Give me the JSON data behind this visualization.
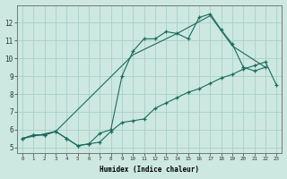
{
  "xlabel": "Humidex (Indice chaleur)",
  "bg_color": "#cce8e0",
  "grid_color": "#aacfc8",
  "line_color": "#1a6b5e",
  "xlim": [
    -0.5,
    23.5
  ],
  "ylim": [
    4.7,
    13.0
  ],
  "yticks": [
    5,
    6,
    7,
    8,
    9,
    10,
    11,
    12
  ],
  "xticks": [
    0,
    1,
    2,
    3,
    4,
    5,
    6,
    7,
    8,
    9,
    10,
    11,
    12,
    13,
    14,
    15,
    16,
    17,
    18,
    19,
    20,
    21,
    22,
    23
  ],
  "line1_x": [
    0,
    1,
    2,
    3,
    4,
    5,
    6,
    7,
    8,
    9,
    10,
    11,
    12,
    13,
    14,
    15,
    16,
    17,
    18,
    19,
    20,
    21,
    22,
    23
  ],
  "line1_y": [
    5.5,
    5.7,
    5.7,
    5.9,
    5.5,
    5.1,
    5.2,
    5.3,
    5.9,
    6.4,
    6.5,
    6.6,
    7.2,
    7.5,
    7.8,
    8.1,
    8.3,
    8.6,
    8.9,
    9.1,
    9.4,
    9.6,
    9.8,
    8.5
  ],
  "line2_x": [
    0,
    1,
    2,
    3,
    4,
    5,
    6,
    7,
    8,
    9,
    10,
    11,
    12,
    13,
    14,
    15,
    16,
    17,
    18,
    19,
    20,
    21,
    22
  ],
  "line2_y": [
    5.5,
    5.7,
    5.7,
    5.9,
    5.5,
    5.1,
    5.2,
    5.8,
    6.0,
    9.0,
    10.4,
    11.1,
    11.1,
    11.5,
    11.4,
    11.1,
    12.3,
    12.5,
    11.6,
    10.8,
    9.5,
    9.3,
    9.5
  ],
  "line3_x": [
    0,
    3,
    10,
    14,
    17,
    19,
    22
  ],
  "line3_y": [
    5.5,
    5.9,
    10.2,
    11.4,
    12.4,
    10.7,
    9.5
  ]
}
